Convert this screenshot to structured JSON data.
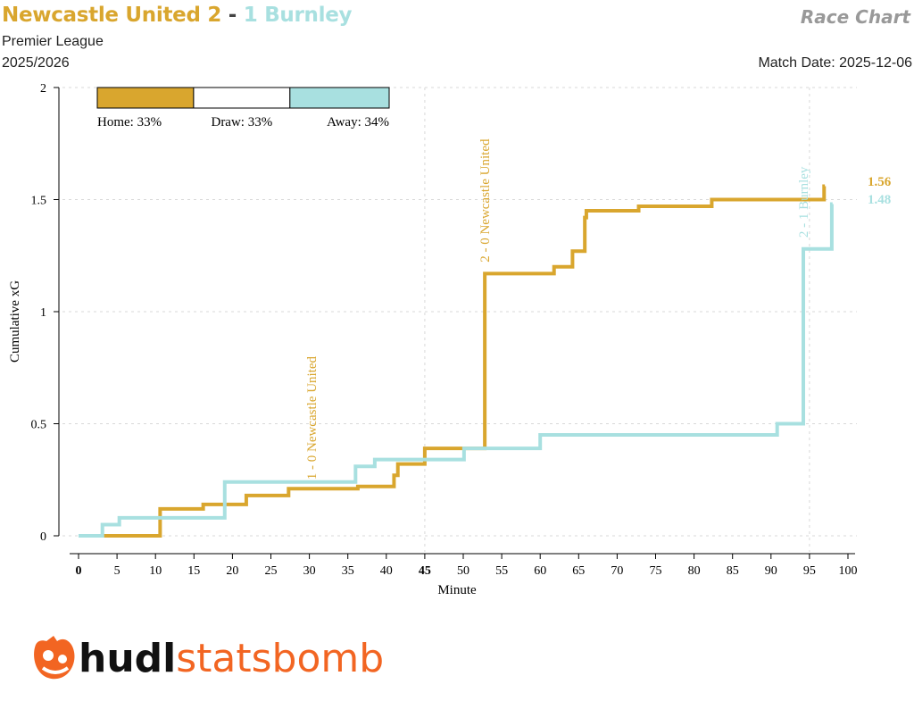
{
  "header": {
    "home_team": "Newcastle United",
    "home_score": "2",
    "separator": "-",
    "away_score": "1",
    "away_team": "Burnley",
    "chart_label": "Race Chart",
    "competition": "Premier League",
    "season": "2025/2026",
    "match_date": "Match Date: 2025-12-06"
  },
  "colors": {
    "home": "#d9a62e",
    "away": "#a8e0e0",
    "grid": "#d8d8d8",
    "axis": "#000000"
  },
  "probability_bar": {
    "home": 0.33,
    "draw": 0.33,
    "away": 0.34,
    "home_label": "Home: 33%",
    "draw_label": "Draw: 33%",
    "away_label": "Away: 34%"
  },
  "chart_data": {
    "type": "line",
    "step": true,
    "xlabel": "Minute",
    "ylabel": "Cumulative xG",
    "xlim": [
      0,
      100
    ],
    "ylim": [
      0,
      2
    ],
    "x_ticks": [
      0,
      5,
      10,
      15,
      20,
      25,
      30,
      35,
      40,
      45,
      50,
      55,
      60,
      65,
      70,
      75,
      80,
      85,
      90,
      95,
      100
    ],
    "x_bold_ticks": [
      0,
      45
    ],
    "y_ticks": [
      0,
      0.5,
      1,
      1.5,
      2
    ],
    "y_tick_labels": [
      "0",
      "0.5",
      "1",
      "1.5",
      "2"
    ],
    "grid": true,
    "series": [
      {
        "team": "home",
        "points": [
          [
            0,
            0
          ],
          [
            3.2,
            0
          ],
          [
            10.6,
            0.12
          ],
          [
            16.2,
            0.14
          ],
          [
            21.8,
            0.18
          ],
          [
            27.3,
            0.21
          ],
          [
            36.3,
            0.22
          ],
          [
            41,
            0.27
          ],
          [
            41.5,
            0.32
          ],
          [
            45,
            0.39
          ],
          [
            52.8,
            1.17
          ],
          [
            61.8,
            1.2
          ],
          [
            64.2,
            1.27
          ],
          [
            65.8,
            1.42
          ],
          [
            66,
            1.45
          ],
          [
            72.8,
            1.47
          ],
          [
            82.3,
            1.5
          ],
          [
            96.9,
            1.56
          ]
        ],
        "end_x": 97.0,
        "final_label": "1.56"
      },
      {
        "team": "away",
        "points": [
          [
            0,
            0
          ],
          [
            3.1,
            0.05
          ],
          [
            5.3,
            0.08
          ],
          [
            19,
            0.24
          ],
          [
            36,
            0.31
          ],
          [
            38.5,
            0.34
          ],
          [
            50.1,
            0.39
          ],
          [
            60,
            0.45
          ],
          [
            90.8,
            0.5
          ],
          [
            94.2,
            1.28
          ],
          [
            97.9,
            1.48
          ]
        ],
        "end_x": 98.0,
        "final_label": "1.48"
      }
    ],
    "annotations": [
      {
        "team": "home",
        "x": 30.3,
        "y_base": 0.25,
        "text": "1 - 0 Newcastle United"
      },
      {
        "team": "home",
        "x": 52.8,
        "y_base": 1.22,
        "text": "2 - 0 Newcastle United"
      },
      {
        "team": "away",
        "x": 94.2,
        "y_base": 1.33,
        "text": "2 - 1 Burnley"
      }
    ]
  },
  "logo": {
    "text_a": "hudl",
    "text_b": "statsbomb",
    "icon": "statsbomb-logo-icon"
  }
}
